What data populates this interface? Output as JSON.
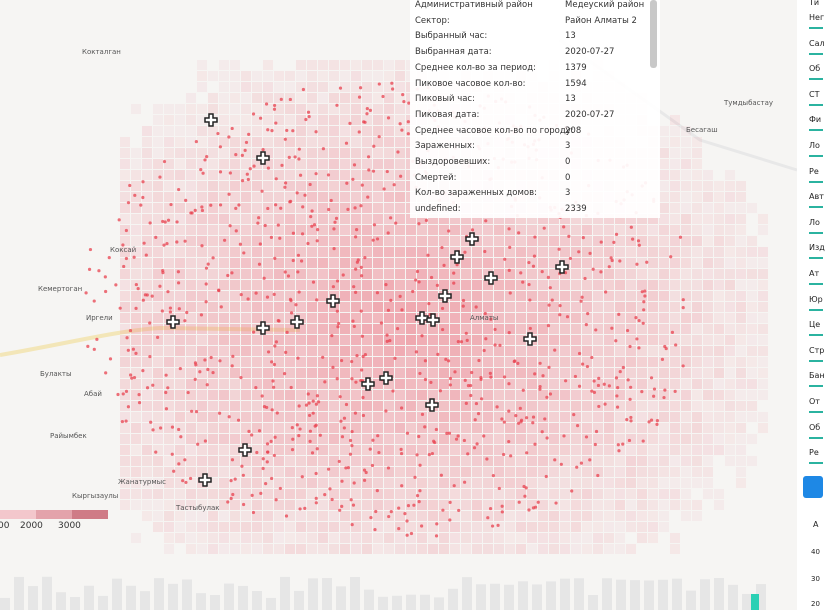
{
  "popup": {
    "rows": [
      [
        "Административный район",
        "Медеуский район"
      ],
      [
        "Сектор:",
        "Район Алматы 2"
      ],
      [
        "Выбранный час:",
        "13"
      ],
      [
        "Выбранная дата:",
        "2020-07-27"
      ],
      [
        "Среднее кол-во за период:",
        "1379"
      ],
      [
        "Пиковое часовое кол-во:",
        "1594"
      ],
      [
        "Пиковый час:",
        "13"
      ],
      [
        "Пиковая дата:",
        "2020-07-27"
      ],
      [
        "Среднее часовое кол-во по городу:",
        "208"
      ],
      [
        "Зараженных:",
        "3"
      ],
      [
        "Выздоровевших:",
        "0"
      ],
      [
        "Смертей:",
        "0"
      ],
      [
        "Кол-во зараженных домов:",
        "3"
      ],
      [
        "undefined:",
        "2339"
      ]
    ]
  },
  "map_labels": [
    "Кокталган",
    "Коксай",
    "Кемертоган",
    "Иргели",
    "Булакты",
    "Абай",
    "Райымбек",
    "Жанатурмыс",
    "Кыргызаулы",
    "Тастыбулак",
    "Алматы",
    "Тумдыбастау",
    "Бесагаш"
  ],
  "legend": {
    "labels": [
      "00",
      "2000",
      "3000"
    ]
  },
  "side_panel": {
    "items": [
      "Ти",
      "Нег",
      "Сал",
      "Об",
      "СТ",
      "Фи",
      "Ло",
      "Ре",
      "Авт",
      "Ло",
      "Изд",
      "Ат",
      "Юр",
      "Це",
      "Стр",
      "Бан",
      "От",
      "Об",
      "Ре"
    ]
  },
  "mini_chart": {
    "title": "А",
    "ticks": [
      "40",
      "30",
      "20"
    ]
  }
}
